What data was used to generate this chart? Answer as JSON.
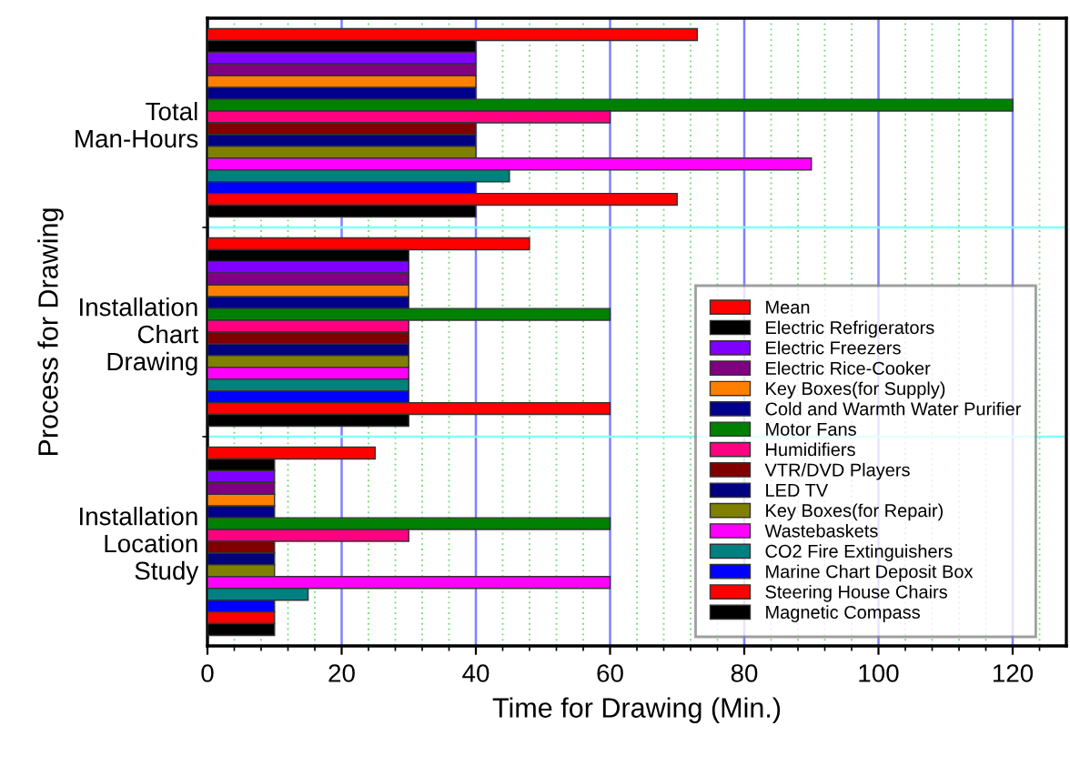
{
  "chart_data": {
    "type": "bar",
    "orientation": "horizontal",
    "xlabel": "Time for Drawing (Min.)",
    "ylabel": "Process for Drawing",
    "categories": [
      "Total\nMan-Hours",
      "Installation\nChart\nDrawing",
      "Installation\nLocation\nStudy"
    ],
    "series": [
      {
        "name": "Mean",
        "color": "#ff0000",
        "values": [
          73,
          48,
          25
        ]
      },
      {
        "name": "Electric Refrigerators",
        "color": "#000000",
        "values": [
          40,
          30,
          10
        ]
      },
      {
        "name": "Electric Freezers",
        "color": "#8000ff",
        "values": [
          40,
          30,
          10
        ]
      },
      {
        "name": "Electric Rice-Cooker",
        "color": "#800080",
        "values": [
          40,
          30,
          10
        ]
      },
      {
        "name": "Key Boxes(for Supply)",
        "color": "#ff8000",
        "values": [
          40,
          30,
          10
        ]
      },
      {
        "name": "Cold and Warmth Water Purifier",
        "color": "#00008b",
        "values": [
          40,
          30,
          10
        ]
      },
      {
        "name": "Motor Fans",
        "color": "#008000",
        "values": [
          120,
          60,
          60
        ]
      },
      {
        "name": "Humidifiers",
        "color": "#ff0080",
        "values": [
          60,
          30,
          30
        ]
      },
      {
        "name": "VTR/DVD Players",
        "color": "#800000",
        "values": [
          40,
          30,
          10
        ]
      },
      {
        "name": "LED TV",
        "color": "#000080",
        "values": [
          40,
          30,
          10
        ]
      },
      {
        "name": "Key Boxes(for Repair)",
        "color": "#808000",
        "values": [
          40,
          30,
          10
        ]
      },
      {
        "name": "Wastebaskets",
        "color": "#ff00ff",
        "values": [
          90,
          30,
          60
        ]
      },
      {
        "name": "CO2 Fire Extinguishers",
        "color": "#008080",
        "values": [
          45,
          30,
          15
        ]
      },
      {
        "name": "Marine Chart Deposit Box",
        "color": "#0000ff",
        "values": [
          40,
          30,
          10
        ]
      },
      {
        "name": "Steering House Chairs",
        "color": "#ff0000",
        "values": [
          70,
          60,
          10
        ]
      },
      {
        "name": "Magnetic Compass",
        "color": "#000000",
        "values": [
          40,
          30,
          10
        ]
      }
    ],
    "xlim": [
      0,
      128
    ],
    "xticks": [
      0,
      {
        "value": 4,
        "label": null
      },
      {
        "value": 8,
        "label": null
      },
      {
        "value": 12,
        "label": null
      },
      {
        "value": 16,
        "label": null
      },
      20,
      {
        "value": 24,
        "label": null
      },
      {
        "value": 28,
        "label": null
      },
      {
        "value": 32,
        "label": null
      },
      {
        "value": 36,
        "label": null
      },
      40,
      {
        "value": 44,
        "label": null
      },
      {
        "value": 48,
        "label": null
      },
      {
        "value": 52,
        "label": null
      },
      {
        "value": 56,
        "label": null
      },
      60,
      {
        "value": 64,
        "label": null
      },
      {
        "value": 68,
        "label": null
      },
      {
        "value": 72,
        "label": null
      },
      {
        "value": 76,
        "label": null
      },
      80,
      {
        "value": 84,
        "label": null
      },
      {
        "value": 88,
        "label": null
      },
      {
        "value": 92,
        "label": null
      },
      {
        "value": 96,
        "label": null
      },
      100,
      {
        "value": 104,
        "label": null
      },
      {
        "value": 108,
        "label": null
      },
      {
        "value": 112,
        "label": null
      },
      {
        "value": 116,
        "label": null
      },
      120,
      {
        "value": 124,
        "label": null
      }
    ],
    "grid": true,
    "legend": "bottom right"
  }
}
